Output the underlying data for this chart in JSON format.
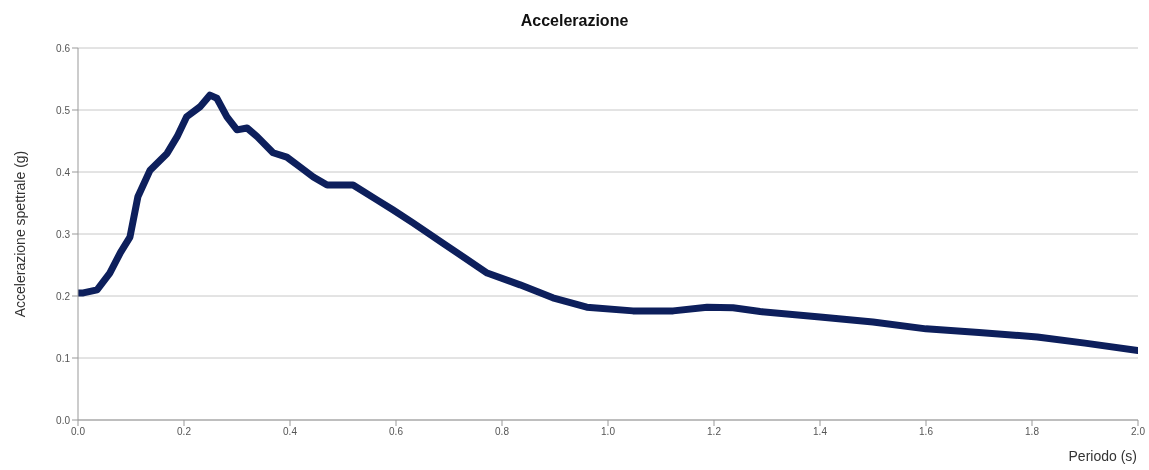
{
  "chart_data": {
    "type": "line",
    "title": "Accelerazione",
    "xlabel": "Periodo (s)",
    "ylabel": "Accelerazione spettrale (g)",
    "x": [
      0,
      0.01,
      0.036,
      0.06,
      0.08,
      0.098,
      0.113,
      0.136,
      0.168,
      0.187,
      0.205,
      0.23,
      0.249,
      0.262,
      0.281,
      0.3,
      0.319,
      0.338,
      0.368,
      0.394,
      0.419,
      0.444,
      0.47,
      0.519,
      0.564,
      0.594,
      0.632,
      0.689,
      0.772,
      0.834,
      0.896,
      0.96,
      1.047,
      1.123,
      1.187,
      1.236,
      1.287,
      1.4,
      1.5,
      1.6,
      1.7,
      1.81,
      1.9,
      2.0
    ],
    "series": [
      {
        "color": "#0d1f5c",
        "values": [
          0.205,
          0.205,
          0.21,
          0.237,
          0.27,
          0.295,
          0.36,
          0.403,
          0.43,
          0.457,
          0.489,
          0.505,
          0.524,
          0.519,
          0.489,
          0.468,
          0.471,
          0.457,
          0.431,
          0.424,
          0.408,
          0.392,
          0.379,
          0.379,
          0.355,
          0.339,
          0.318,
          0.285,
          0.237,
          0.218,
          0.197,
          0.182,
          0.176,
          0.176,
          0.182,
          0.181,
          0.175,
          0.166,
          0.158,
          0.147,
          0.141,
          0.134,
          0.124,
          0.112
        ]
      }
    ],
    "xlim": [
      0,
      2
    ],
    "ylim": [
      0,
      0.6
    ],
    "xticks": [
      {
        "value": 0,
        "label": "0.0"
      },
      {
        "value": 0.2,
        "label": "0.2"
      },
      {
        "value": 0.4,
        "label": "0.4"
      },
      {
        "value": 0.6,
        "label": "0.6"
      },
      {
        "value": 0.8,
        "label": "0.8"
      },
      {
        "value": 1,
        "label": "1.0"
      },
      {
        "value": 1.2,
        "label": "1.2"
      },
      {
        "value": 1.4,
        "label": "1.4"
      },
      {
        "value": 1.6,
        "label": "1.6"
      },
      {
        "value": 1.8,
        "label": "1.8"
      },
      {
        "value": 2,
        "label": "2.0"
      }
    ],
    "yticks": [
      {
        "value": 0,
        "label": "0.0"
      },
      {
        "value": 0.1,
        "label": "0.1"
      },
      {
        "value": 0.2,
        "label": "0.2"
      },
      {
        "value": 0.3,
        "label": "0.3"
      },
      {
        "value": 0.4,
        "label": "0.4"
      },
      {
        "value": 0.5,
        "label": "0.5"
      },
      {
        "value": 0.6,
        "label": "0.6"
      }
    ],
    "grid": "y",
    "legend": false,
    "marker": "none",
    "line_style": "solid"
  }
}
